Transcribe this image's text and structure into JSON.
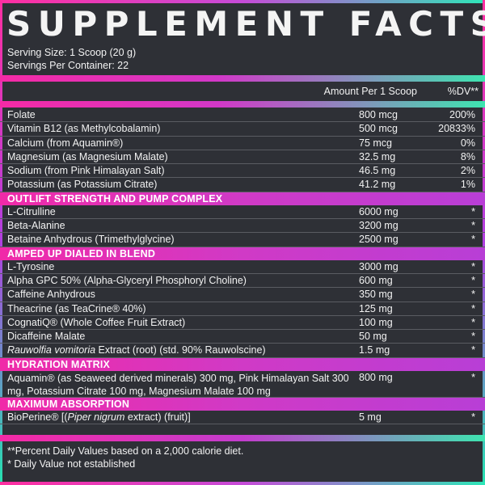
{
  "title": "SUPPLEMENT FACTS",
  "serving_size": "Serving Size: 1 Scoop (20 g)",
  "servings_per_container": "Servings Per Container: 22",
  "header": {
    "amount": "Amount Per 1 Scoop",
    "dv": "%DV**"
  },
  "vitamins": [
    {
      "name": "Folate",
      "amount": "800 mcg",
      "dv": "200%"
    },
    {
      "name": "Vitamin B12 (as Methylcobalamin)",
      "amount": "500 mcg",
      "dv": "20833%"
    },
    {
      "name": "Calcium (from Aquamin®)",
      "amount": "75 mcg",
      "dv": "0%"
    },
    {
      "name": "Magnesium (as Magnesium Malate)",
      "amount": "32.5 mg",
      "dv": "8%"
    },
    {
      "name": "Sodium (from Pink Himalayan Salt)",
      "amount": "46.5 mg",
      "dv": "2%"
    },
    {
      "name": "Potassium (as Potassium Citrate)",
      "amount": "41.2 mg",
      "dv": "1%"
    }
  ],
  "sections": [
    {
      "title": "OUTLIFT STRENGTH AND PUMP COMPLEX",
      "items": [
        {
          "name": "L-Citrulline",
          "amount": "6000 mg",
          "dv": "*"
        },
        {
          "name": "Beta-Alanine",
          "amount": "3200 mg",
          "dv": "*"
        },
        {
          "name": "Betaine Anhydrous (Trimethylglycine)",
          "amount": "2500 mg",
          "dv": "*"
        }
      ]
    },
    {
      "title": "AMPED UP DIALED IN BLEND",
      "items": [
        {
          "name": "L-Tyrosine",
          "amount": "3000 mg",
          "dv": "*"
        },
        {
          "name": "Alpha GPC 50% (Alpha-Glyceryl Phosphoryl Choline)",
          "amount": "600 mg",
          "dv": "*"
        },
        {
          "name": "Caffeine Anhydrous",
          "amount": "350 mg",
          "dv": "*"
        },
        {
          "name": "Theacrine (as TeaCrine® 40%)",
          "amount": "125 mg",
          "dv": "*"
        },
        {
          "name": "CognatiQ® (Whole Coffee Fruit Extract)",
          "amount": "100 mg",
          "dv": "*"
        },
        {
          "name": "Dicaffeine Malate",
          "amount": "50 mg",
          "dv": "*"
        },
        {
          "name_italic": "Rauwolfia vomitoria",
          "name_rest": " Extract (root) (std. 90% Rauwolscine)",
          "amount": "1.5 mg",
          "dv": "*"
        }
      ]
    },
    {
      "title": "HYDRATION MATRIX",
      "items": [
        {
          "name": "Aquamin® (as Seaweed derived minerals) 300 mg, Pink Himalayan Salt 300 mg, Potassium Citrate 100 mg, Magnesium Malate 100 mg",
          "amount": "800 mg",
          "dv": "*"
        }
      ]
    },
    {
      "title": "MAXIMUM ABSORPTION",
      "items": [
        {
          "name_pre": "BioPerine® [(",
          "name_italic": "Piper nigrum",
          "name_post": " extract) (fruit)]",
          "amount": "5 mg",
          "dv": "*"
        }
      ]
    }
  ],
  "footnotes": [
    "**Percent Daily Values based on a 2,000 calorie diet.",
    "* Daily Value not established"
  ]
}
